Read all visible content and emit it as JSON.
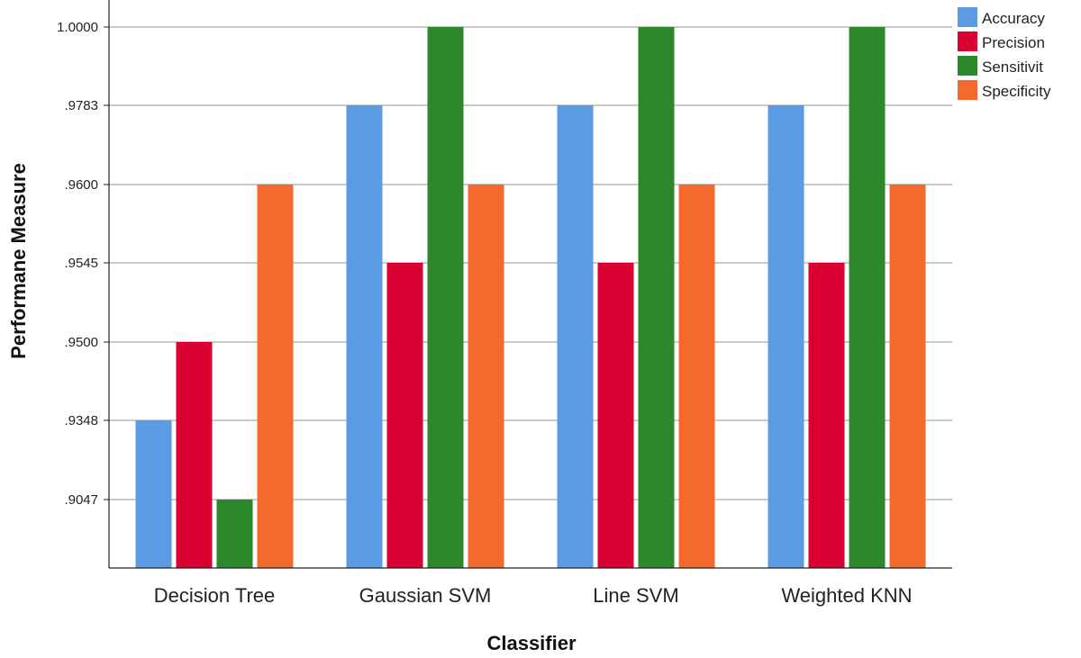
{
  "chart_data": {
    "type": "bar",
    "xlabel": "Classifier",
    "ylabel": "Performane Measure",
    "categories": [
      "Decision Tree",
      "Gaussian SVM",
      "Line SVM",
      "Weighted KNN"
    ],
    "y_ticks": [
      {
        "value": 0.9047,
        "label": ".9047"
      },
      {
        "value": 0.9348,
        "label": ".9348"
      },
      {
        "value": 0.95,
        "label": ".9500"
      },
      {
        "value": 0.9545,
        "label": ".9545"
      },
      {
        "value": 0.96,
        "label": ".9600"
      },
      {
        "value": 0.9783,
        "label": ".9783"
      },
      {
        "value": 1.0,
        "label": "1.0000"
      }
    ],
    "series": [
      {
        "name": "Accuracy",
        "color": "#5b9be3",
        "values": [
          0.9348,
          0.9783,
          0.9783,
          0.9783
        ]
      },
      {
        "name": "Precision",
        "color": "#d90032",
        "values": [
          0.95,
          0.9545,
          0.9545,
          0.9545
        ]
      },
      {
        "name": "Sensitivit",
        "color": "#2b882b",
        "values": [
          0.9047,
          1.0,
          1.0,
          1.0
        ]
      },
      {
        "name": "Specificity",
        "color": "#f46a2e",
        "values": [
          0.96,
          0.96,
          0.96,
          0.96
        ]
      }
    ],
    "scale": "categorical-ticks",
    "grid": true,
    "legend_position": "top-right"
  }
}
